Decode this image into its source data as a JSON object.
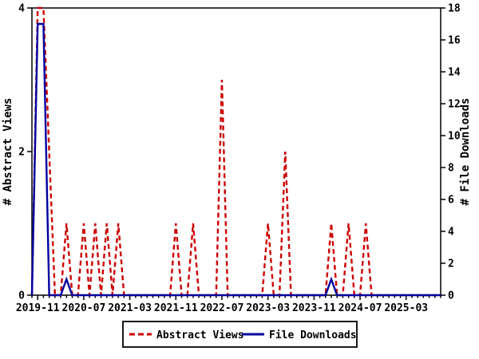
{
  "chart_data": {
    "type": "line",
    "title": "",
    "x_axis": {
      "start_month": "2019-10",
      "end_month": "2025-09",
      "minor_tick_interval_months": 1,
      "major_tick_interval_months": 8,
      "major_tick_labels": [
        "2019-11",
        "2020-07",
        "2021-03",
        "2021-11",
        "2022-07",
        "2023-03",
        "2023-11",
        "2024-07",
        "2025-03"
      ]
    },
    "y_left": {
      "label": "# Abstract Views",
      "range": [
        0,
        4
      ],
      "ticks": [
        0,
        2,
        4
      ]
    },
    "y_right": {
      "label": "# File Downloads",
      "range": [
        0,
        18
      ],
      "ticks": [
        0,
        2,
        4,
        6,
        8,
        10,
        12,
        14,
        16,
        18
      ]
    },
    "series": [
      {
        "name": "Abstract Views",
        "axis": "left",
        "color": "#cc0000",
        "style": "dashed",
        "baseline_value": 0,
        "nonzero_points": {
          "2019-11": 4,
          "2019-12": 4,
          "2020-01": 2,
          "2020-04": 1,
          "2020-07": 1,
          "2020-09": 1,
          "2020-11": 1,
          "2021-01": 1,
          "2021-11": 1,
          "2022-02": 1,
          "2022-07": 3,
          "2023-03": 1,
          "2023-06": 2,
          "2024-02": 1,
          "2024-05": 1,
          "2024-08": 1
        }
      },
      {
        "name": "File Downloads",
        "axis": "right",
        "color": "#0000a0",
        "style": "solid",
        "baseline_value": 0,
        "nonzero_points": {
          "2019-11": 17,
          "2019-12": 17,
          "2020-04": 1,
          "2024-02": 1
        }
      }
    ],
    "legend": {
      "position": "bottom-center",
      "entries": [
        {
          "label": "Abstract Views",
          "color": "#cc0000",
          "style": "dashed"
        },
        {
          "label": "File Downloads",
          "color": "#0000a0",
          "style": "solid"
        }
      ]
    },
    "grid": "off",
    "background": "#ffffff",
    "axis_color": "#000000"
  }
}
